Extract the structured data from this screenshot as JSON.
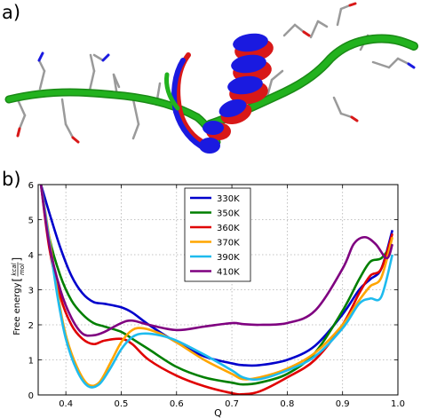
{
  "panels": {
    "a_label": "a)",
    "b_label": "b)"
  },
  "structure_colors": {
    "coil_green": "#22b21e",
    "helix_blue": "#1a1ae0",
    "helix_red": "#d81818",
    "atom_gray": "#9a9a9a"
  },
  "chart_data": {
    "type": "line",
    "xlabel": "Q",
    "ylabel_main": "Free energy ",
    "ylabel_unit_num": "kcal",
    "ylabel_unit_den": "mol",
    "xlim": [
      0.35,
      1.0
    ],
    "ylim": [
      0,
      6
    ],
    "xticks": [
      0.4,
      0.5,
      0.6,
      0.7,
      0.8,
      0.9,
      1.0
    ],
    "xtick_labels": [
      "0.4",
      "0.5",
      "0.6",
      "0.7",
      "0.8",
      "0.9",
      "1.0"
    ],
    "yticks": [
      0,
      1,
      2,
      3,
      4,
      5,
      6
    ],
    "ytick_labels": [
      "0",
      "1",
      "2",
      "3",
      "4",
      "5",
      "6"
    ],
    "grid": true,
    "legend_position": "upper-center",
    "series": [
      {
        "name": "330K",
        "color": "#0000cc",
        "x": [
          0.355,
          0.37,
          0.39,
          0.41,
          0.43,
          0.45,
          0.47,
          0.5,
          0.52,
          0.55,
          0.6,
          0.65,
          0.7,
          0.72,
          0.75,
          0.8,
          0.85,
          0.9,
          0.93,
          0.95,
          0.97,
          0.99
        ],
        "y": [
          6.0,
          5.2,
          4.2,
          3.4,
          2.9,
          2.65,
          2.6,
          2.5,
          2.35,
          2.0,
          1.5,
          1.1,
          0.9,
          0.85,
          0.85,
          1.0,
          1.4,
          2.3,
          3.0,
          3.3,
          3.6,
          4.7
        ]
      },
      {
        "name": "350K",
        "color": "#007f00",
        "x": [
          0.355,
          0.37,
          0.39,
          0.41,
          0.43,
          0.45,
          0.47,
          0.5,
          0.52,
          0.55,
          0.6,
          0.65,
          0.7,
          0.72,
          0.75,
          0.8,
          0.85,
          0.9,
          0.93,
          0.95,
          0.97,
          0.99
        ],
        "y": [
          6.0,
          4.5,
          3.4,
          2.7,
          2.3,
          2.05,
          1.95,
          1.8,
          1.6,
          1.3,
          0.8,
          0.5,
          0.35,
          0.3,
          0.35,
          0.6,
          1.2,
          2.4,
          3.3,
          3.8,
          3.9,
          4.3
        ]
      },
      {
        "name": "360K",
        "color": "#e00000",
        "x": [
          0.355,
          0.37,
          0.39,
          0.41,
          0.43,
          0.45,
          0.47,
          0.5,
          0.52,
          0.55,
          0.6,
          0.65,
          0.7,
          0.72,
          0.75,
          0.8,
          0.85,
          0.9,
          0.93,
          0.95,
          0.97,
          0.99
        ],
        "y": [
          6.0,
          4.2,
          2.8,
          2.0,
          1.6,
          1.45,
          1.55,
          1.6,
          1.45,
          1.0,
          0.55,
          0.25,
          0.05,
          0.02,
          0.1,
          0.5,
          1.0,
          2.0,
          2.9,
          3.4,
          3.6,
          4.6
        ]
      },
      {
        "name": "370K",
        "color": "#ffa500",
        "x": [
          0.355,
          0.37,
          0.385,
          0.4,
          0.42,
          0.44,
          0.46,
          0.48,
          0.5,
          0.52,
          0.54,
          0.57,
          0.6,
          0.65,
          0.7,
          0.72,
          0.75,
          0.8,
          0.85,
          0.9,
          0.93,
          0.95,
          0.97,
          0.99
        ],
        "y": [
          6.0,
          4.5,
          2.9,
          1.7,
          0.8,
          0.3,
          0.35,
          0.9,
          1.5,
          1.85,
          1.9,
          1.75,
          1.5,
          1.0,
          0.6,
          0.45,
          0.5,
          0.75,
          1.2,
          2.0,
          2.7,
          3.1,
          3.35,
          4.5
        ]
      },
      {
        "name": "390K",
        "color": "#1ebbee",
        "x": [
          0.355,
          0.37,
          0.385,
          0.4,
          0.42,
          0.44,
          0.46,
          0.48,
          0.5,
          0.52,
          0.54,
          0.57,
          0.6,
          0.65,
          0.7,
          0.72,
          0.75,
          0.8,
          0.85,
          0.9,
          0.93,
          0.95,
          0.97,
          0.99
        ],
        "y": [
          6.0,
          4.4,
          2.8,
          1.6,
          0.7,
          0.25,
          0.3,
          0.75,
          1.3,
          1.65,
          1.75,
          1.7,
          1.55,
          1.15,
          0.7,
          0.5,
          0.45,
          0.7,
          1.1,
          1.9,
          2.6,
          2.75,
          2.8,
          4.0
        ]
      },
      {
        "name": "410K",
        "color": "#7f0080",
        "x": [
          0.355,
          0.37,
          0.39,
          0.41,
          0.43,
          0.45,
          0.47,
          0.5,
          0.52,
          0.55,
          0.6,
          0.65,
          0.7,
          0.72,
          0.75,
          0.8,
          0.85,
          0.9,
          0.92,
          0.94,
          0.96,
          0.98,
          0.99
        ],
        "y": [
          6.0,
          4.3,
          3.0,
          2.2,
          1.75,
          1.7,
          1.8,
          2.05,
          2.12,
          2.0,
          1.85,
          1.95,
          2.05,
          2.02,
          2.0,
          2.05,
          2.4,
          3.6,
          4.3,
          4.5,
          4.3,
          3.9,
          4.3
        ]
      }
    ]
  }
}
